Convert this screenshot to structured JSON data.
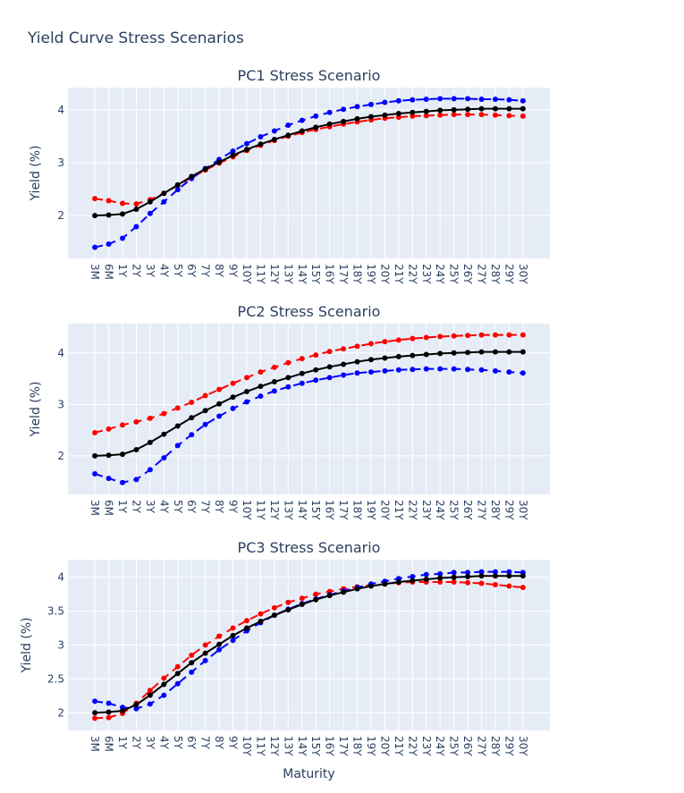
{
  "title": "Yield Curve Stress Scenarios",
  "chart_data": [
    {
      "type": "line",
      "title": "PC1 Stress Scenario",
      "y_label": "Yield (%)",
      "categories": [
        "3M",
        "6M",
        "1Y",
        "2Y",
        "3Y",
        "4Y",
        "5Y",
        "6Y",
        "7Y",
        "8Y",
        "9Y",
        "10Y",
        "11Y",
        "12Y",
        "13Y",
        "14Y",
        "15Y",
        "16Y",
        "17Y",
        "18Y",
        "19Y",
        "20Y",
        "21Y",
        "22Y",
        "23Y",
        "24Y",
        "25Y",
        "26Y",
        "27Y",
        "28Y",
        "29Y",
        "30Y"
      ],
      "ylim": [
        1.19,
        4.42
      ],
      "yticks": [
        2,
        3,
        4
      ],
      "grid": true,
      "series": [
        {
          "color": "#ff0000",
          "dash": "dash",
          "values": [
            2.32,
            2.28,
            2.23,
            2.22,
            2.3,
            2.42,
            2.57,
            2.72,
            2.86,
            2.99,
            3.11,
            3.23,
            3.33,
            3.42,
            3.5,
            3.57,
            3.63,
            3.68,
            3.73,
            3.77,
            3.81,
            3.84,
            3.86,
            3.88,
            3.89,
            3.9,
            3.91,
            3.91,
            3.91,
            3.9,
            3.89,
            3.88
          ]
        },
        {
          "color": "#0000ff",
          "dash": "dash",
          "values": [
            1.4,
            1.46,
            1.57,
            1.79,
            2.04,
            2.26,
            2.49,
            2.7,
            2.89,
            3.06,
            3.22,
            3.36,
            3.49,
            3.6,
            3.71,
            3.8,
            3.88,
            3.95,
            4.01,
            4.06,
            4.1,
            4.14,
            4.17,
            4.19,
            4.2,
            4.21,
            4.21,
            4.21,
            4.2,
            4.2,
            4.19,
            4.17
          ]
        },
        {
          "color": "#000000",
          "dash": "solid",
          "values": [
            2.0,
            2.01,
            2.03,
            2.12,
            2.26,
            2.42,
            2.58,
            2.74,
            2.88,
            3.01,
            3.14,
            3.25,
            3.35,
            3.44,
            3.52,
            3.6,
            3.67,
            3.73,
            3.78,
            3.83,
            3.87,
            3.9,
            3.93,
            3.95,
            3.97,
            3.99,
            4.0,
            4.01,
            4.02,
            4.02,
            4.02,
            4.02
          ]
        }
      ]
    },
    {
      "type": "line",
      "title": "PC2 Stress Scenario",
      "y_label": "Yield (%)",
      "categories": [
        "3M",
        "6M",
        "1Y",
        "2Y",
        "3Y",
        "4Y",
        "5Y",
        "6Y",
        "7Y",
        "8Y",
        "9Y",
        "10Y",
        "11Y",
        "12Y",
        "13Y",
        "14Y",
        "15Y",
        "16Y",
        "17Y",
        "18Y",
        "19Y",
        "20Y",
        "21Y",
        "22Y",
        "23Y",
        "24Y",
        "25Y",
        "26Y",
        "27Y",
        "28Y",
        "29Y",
        "30Y"
      ],
      "ylim": [
        1.25,
        4.57
      ],
      "yticks": [
        2,
        3,
        4
      ],
      "grid": true,
      "series": [
        {
          "color": "#ff0000",
          "dash": "dash",
          "values": [
            2.45,
            2.52,
            2.6,
            2.66,
            2.73,
            2.82,
            2.93,
            3.04,
            3.17,
            3.29,
            3.41,
            3.52,
            3.63,
            3.72,
            3.81,
            3.89,
            3.96,
            4.03,
            4.08,
            4.13,
            4.18,
            4.22,
            4.25,
            4.28,
            4.3,
            4.32,
            4.33,
            4.34,
            4.35,
            4.35,
            4.35,
            4.35
          ]
        },
        {
          "color": "#0000ff",
          "dash": "dash",
          "values": [
            1.65,
            1.56,
            1.48,
            1.54,
            1.73,
            1.96,
            2.2,
            2.41,
            2.61,
            2.77,
            2.92,
            3.05,
            3.16,
            3.26,
            3.34,
            3.41,
            3.47,
            3.52,
            3.57,
            3.61,
            3.63,
            3.65,
            3.67,
            3.68,
            3.69,
            3.69,
            3.69,
            3.68,
            3.67,
            3.65,
            3.63,
            3.61
          ]
        },
        {
          "color": "#000000",
          "dash": "solid",
          "values": [
            2.0,
            2.01,
            2.03,
            2.12,
            2.26,
            2.42,
            2.58,
            2.74,
            2.88,
            3.01,
            3.14,
            3.25,
            3.35,
            3.44,
            3.52,
            3.6,
            3.67,
            3.73,
            3.78,
            3.83,
            3.87,
            3.9,
            3.93,
            3.95,
            3.97,
            3.99,
            4.0,
            4.01,
            4.02,
            4.02,
            4.02,
            4.02
          ]
        }
      ]
    },
    {
      "type": "line",
      "title": "PC3 Stress Scenario",
      "y_label": "Yield (%)",
      "x_label": "Maturity",
      "categories": [
        "3M",
        "6M",
        "1Y",
        "2Y",
        "3Y",
        "4Y",
        "5Y",
        "6Y",
        "7Y",
        "8Y",
        "9Y",
        "10Y",
        "11Y",
        "12Y",
        "13Y",
        "14Y",
        "15Y",
        "16Y",
        "17Y",
        "18Y",
        "19Y",
        "20Y",
        "21Y",
        "22Y",
        "23Y",
        "24Y",
        "25Y",
        "26Y",
        "27Y",
        "28Y",
        "29Y",
        "30Y"
      ],
      "ylim": [
        1.74,
        4.26
      ],
      "yticks": [
        2,
        2.5,
        3,
        3.5,
        4
      ],
      "grid": true,
      "series": [
        {
          "color": "#ff0000",
          "dash": "dash",
          "values": [
            1.92,
            1.93,
            1.99,
            2.14,
            2.33,
            2.51,
            2.68,
            2.85,
            3.0,
            3.13,
            3.25,
            3.36,
            3.46,
            3.55,
            3.63,
            3.69,
            3.75,
            3.79,
            3.83,
            3.86,
            3.88,
            3.9,
            3.92,
            3.93,
            3.93,
            3.93,
            3.93,
            3.92,
            3.91,
            3.89,
            3.87,
            3.85
          ]
        },
        {
          "color": "#0000ff",
          "dash": "dash",
          "values": [
            2.17,
            2.14,
            2.08,
            2.06,
            2.13,
            2.26,
            2.43,
            2.6,
            2.77,
            2.93,
            3.07,
            3.21,
            3.33,
            3.44,
            3.53,
            3.61,
            3.68,
            3.74,
            3.8,
            3.85,
            3.9,
            3.94,
            3.98,
            4.01,
            4.04,
            4.05,
            4.07,
            4.07,
            4.08,
            4.08,
            4.08,
            4.07
          ]
        },
        {
          "color": "#000000",
          "dash": "solid",
          "values": [
            2.0,
            2.01,
            2.03,
            2.12,
            2.26,
            2.42,
            2.58,
            2.74,
            2.88,
            3.01,
            3.14,
            3.25,
            3.35,
            3.44,
            3.52,
            3.6,
            3.67,
            3.73,
            3.78,
            3.83,
            3.87,
            3.9,
            3.93,
            3.95,
            3.97,
            3.99,
            4.0,
            4.01,
            4.02,
            4.02,
            4.02,
            4.02
          ]
        }
      ]
    }
  ]
}
